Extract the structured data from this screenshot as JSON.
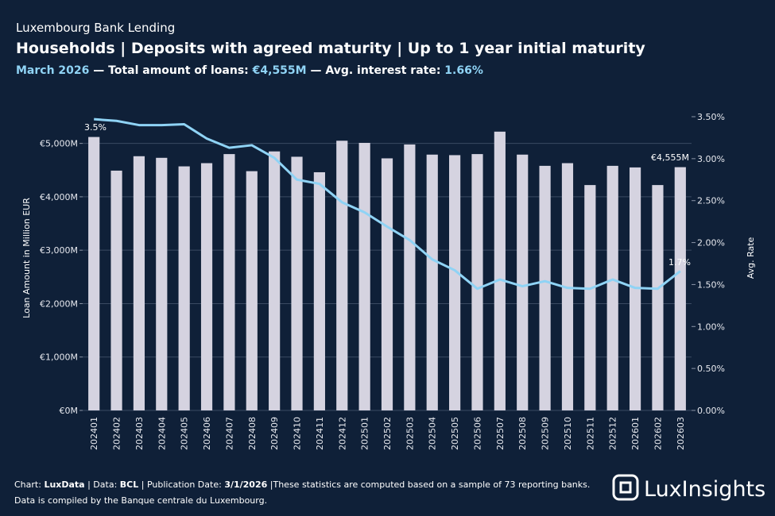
{
  "header": {
    "kicker": "Luxembourg Bank Lending",
    "title": "Households | Deposits with agreed maturity | Up to 1 year  initial maturity",
    "subtitle": [
      "March 2026",
      " — Total amount of loans: ",
      "€4,555M",
      " — Avg. interest rate: ",
      "1.66%"
    ]
  },
  "chart_data": {
    "type": "bar-line",
    "categories": [
      "202401",
      "202402",
      "202403",
      "202404",
      "202405",
      "202406",
      "202407",
      "202408",
      "202409",
      "202410",
      "202411",
      "202412",
      "202501",
      "202502",
      "202503",
      "202504",
      "202505",
      "202506",
      "202507",
      "202508",
      "202509",
      "202510",
      "202511",
      "202512",
      "202601",
      "202602",
      "202603"
    ],
    "series": [
      {
        "name": "Loan Amount",
        "type": "bar",
        "color": "#d5d3e0",
        "values": [
          5120,
          4490,
          4760,
          4730,
          4570,
          4630,
          4800,
          4480,
          4850,
          4750,
          4460,
          5050,
          5010,
          4720,
          4980,
          4790,
          4780,
          4800,
          5220,
          4790,
          4580,
          4630,
          4220,
          4580,
          4550,
          4220,
          4555
        ]
      },
      {
        "name": "Avg. Rate",
        "type": "line",
        "axis": "y2",
        "color": "#8fd3f5",
        "values": [
          3.47,
          3.45,
          3.4,
          3.4,
          3.41,
          3.24,
          3.13,
          3.16,
          3.01,
          2.75,
          2.7,
          2.48,
          2.36,
          2.19,
          2.03,
          1.8,
          1.67,
          1.45,
          1.56,
          1.48,
          1.54,
          1.46,
          1.45,
          1.56,
          1.46,
          1.45,
          1.66
        ]
      }
    ],
    "ylabel": "Loan Amount in Million EUR",
    "y2label": "Avg. Rate",
    "ylim": [
      0,
      5500
    ],
    "yticks": [
      {
        "value": 0,
        "label": "€0M"
      },
      {
        "value": 1000,
        "label": "€1,000M"
      },
      {
        "value": 2000,
        "label": "€2,000M"
      },
      {
        "value": 3000,
        "label": "€3,000M"
      },
      {
        "value": 4000,
        "label": "€4,000M"
      },
      {
        "value": 5000,
        "label": "€5,000M"
      }
    ],
    "y2lim": [
      0,
      3.5
    ],
    "y2ticks": [
      {
        "value": 0,
        "label": "0.00%"
      },
      {
        "value": 0.5,
        "label": "0.50%"
      },
      {
        "value": 1,
        "label": "1.00%"
      },
      {
        "value": 1.5,
        "label": "1.50%"
      },
      {
        "value": 2,
        "label": "2.00%"
      },
      {
        "value": 2.5,
        "label": "2.50%"
      },
      {
        "value": 3,
        "label": "3.00%"
      },
      {
        "value": 3.5,
        "label": "3.50%"
      }
    ],
    "grid": true,
    "annotations": [
      "3.5%",
      "€4,555M",
      "1.7%"
    ]
  },
  "footer": {
    "line1": [
      "Chart: ",
      "LuxData",
      " | Data: ",
      "BCL",
      " | Publication Date: ",
      "3/1/2026",
      " |These statistics are computed based on a sample of 73 reporting banks."
    ],
    "line2": "Data is compiled by the Banque centrale du Luxembourg.",
    "logo": "LuxInsights"
  }
}
